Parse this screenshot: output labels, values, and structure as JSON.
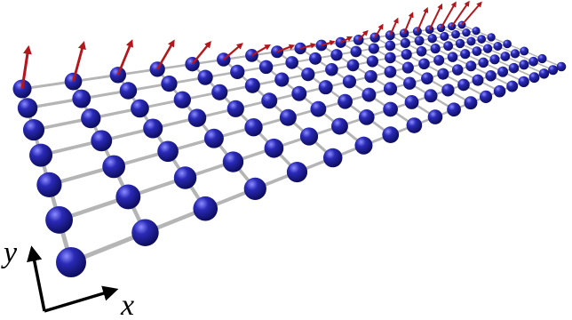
{
  "axes": {
    "y": "y",
    "x": "x"
  }
}
